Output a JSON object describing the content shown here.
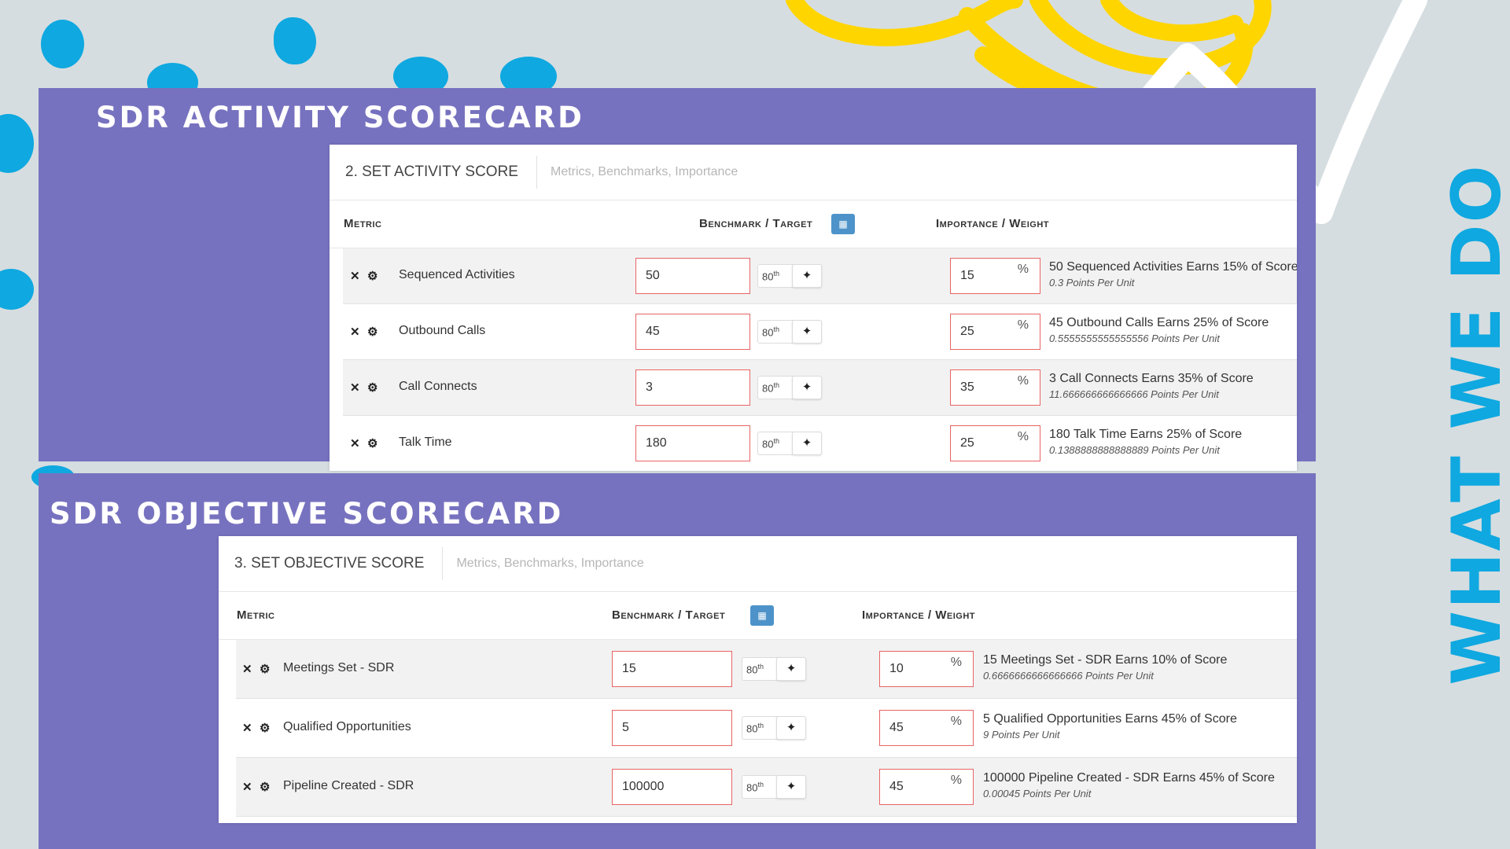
{
  "colors": {
    "background": "#d6dde0",
    "panel": "#7772bf",
    "accent_blue": "#0fa8e0",
    "accent_yellow": "#ffd500",
    "input_border": "#e86464",
    "calendar_button": "#4d93c9"
  },
  "side_label": "WHAT WE DO",
  "activity": {
    "panel_title": "SDR ACTIVITY SCORECARD",
    "step": "2. SET ACTIVITY SCORE",
    "subtitle": "Metrics, Benchmarks, Importance",
    "headers": {
      "metric": "Metric",
      "benchmark": "Benchmark / Target",
      "importance": "Importance / Weight"
    },
    "rows": [
      {
        "name": "Sequenced Activities",
        "benchmark": "50",
        "percentile": "80",
        "weight": "15",
        "pct": "%",
        "summary": "50 Sequenced Activities Earns 15% of Score",
        "points": "0.3 Points Per Unit"
      },
      {
        "name": "Outbound Calls",
        "benchmark": "45",
        "percentile": "80",
        "weight": "25",
        "pct": "%",
        "summary": "45 Outbound Calls Earns 25% of Score",
        "points": "0.5555555555555556 Points Per Unit"
      },
      {
        "name": "Call Connects",
        "benchmark": "3",
        "percentile": "80",
        "weight": "35",
        "pct": "%",
        "summary": "3 Call Connects Earns 35% of Score",
        "points": "11.666666666666666 Points Per Unit"
      },
      {
        "name": "Talk Time",
        "benchmark": "180",
        "percentile": "80",
        "weight": "25",
        "pct": "%",
        "summary": "180 Talk Time Earns 25% of Score",
        "points": "0.1388888888888889 Points Per Unit"
      }
    ]
  },
  "objective": {
    "panel_title": "SDR OBJECTIVE SCORECARD",
    "step": "3. SET OBJECTIVE SCORE",
    "subtitle": "Metrics, Benchmarks, Importance",
    "headers": {
      "metric": "Metric",
      "benchmark": "Benchmark / Target",
      "importance": "Importance / Weight"
    },
    "rows": [
      {
        "name": "Meetings Set - SDR",
        "benchmark": "15",
        "percentile": "80",
        "weight": "10",
        "pct": "%",
        "summary": "15 Meetings Set - SDR Earns 10% of Score",
        "points": "0.6666666666666666 Points Per Unit"
      },
      {
        "name": "Qualified Opportunities",
        "benchmark": "5",
        "percentile": "80",
        "weight": "45",
        "pct": "%",
        "summary": "5 Qualified Opportunities Earns 45% of Score",
        "points": "9 Points Per Unit"
      },
      {
        "name": "Pipeline Created - SDR",
        "benchmark": "100000",
        "percentile": "80",
        "weight": "45",
        "pct": "%",
        "summary": "100000 Pipeline Created - SDR Earns 45% of Score",
        "points": "0.00045 Points Per Unit"
      }
    ]
  },
  "percentile_suffix": "th",
  "icons": {
    "remove": "close-icon",
    "settings": "gear-icon",
    "calendar": "calendar-icon",
    "wand": "magic-wand-icon"
  }
}
